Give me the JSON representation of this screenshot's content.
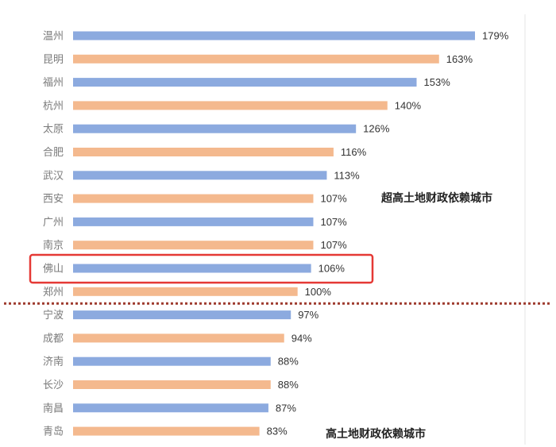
{
  "chart_data": {
    "type": "bar",
    "orientation": "horizontal",
    "categories": [
      "温州",
      "昆明",
      "福州",
      "杭州",
      "太原",
      "合肥",
      "武汉",
      "西安",
      "广州",
      "南京",
      "佛山",
      "郑州",
      "宁波",
      "成都",
      "济南",
      "长沙",
      "南昌",
      "青岛"
    ],
    "values": [
      179,
      163,
      153,
      140,
      126,
      116,
      113,
      107,
      107,
      107,
      106,
      100,
      97,
      94,
      88,
      88,
      87,
      83
    ],
    "value_labels": [
      "179%",
      "163%",
      "153%",
      "140%",
      "126%",
      "116%",
      "113%",
      "107%",
      "107%",
      "107%",
      "106%",
      "100%",
      "97%",
      "94%",
      "88%",
      "88%",
      "87%",
      "83%"
    ],
    "unit": "%",
    "colors": {
      "odd": "#8caadf",
      "even": "#f4b98e",
      "highlight_box": "#e53935",
      "divider": "#9e3b2f"
    },
    "highlight": "佛山",
    "divider_value": 100,
    "annotations": [
      {
        "text": "超高土地财政依赖城市",
        "group": "above"
      },
      {
        "text": "高土地财政依赖城市",
        "group": "below"
      }
    ],
    "grid": false,
    "legend": "none"
  }
}
